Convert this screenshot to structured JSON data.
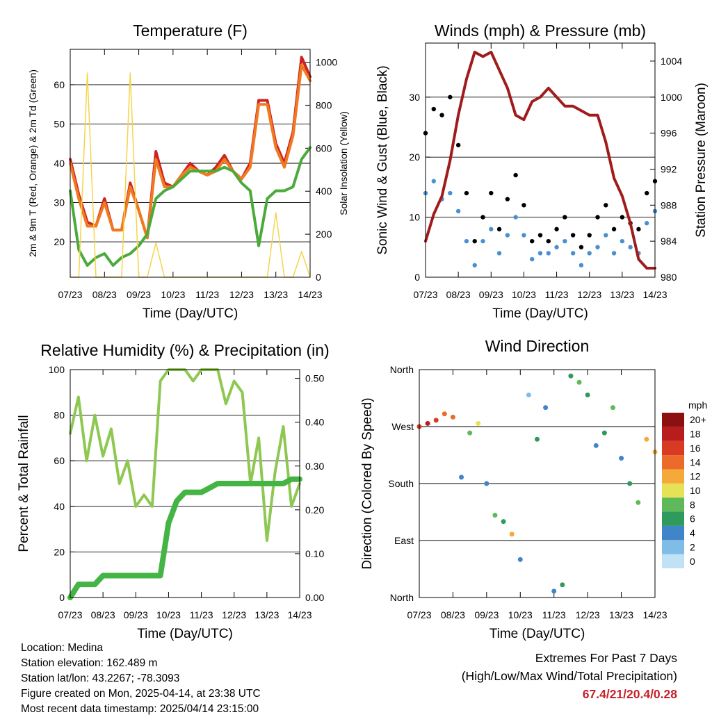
{
  "x_ticks": [
    "07/23",
    "08/23",
    "09/23",
    "10/23",
    "11/23",
    "12/23",
    "13/23",
    "14/23"
  ],
  "chart_data": [
    {
      "type": "line",
      "title": "Temperature (F)",
      "xlabel": "Time (Day/UTC)",
      "ylabel": "2m & 9m T (Red, Orange) & 2m Td (Green)",
      "y2label": "Solar Insolation (Yellow)",
      "ylim": [
        11,
        69
      ],
      "y2lim": [
        0,
        1060
      ],
      "yticks": [
        20,
        30,
        40,
        50,
        60
      ],
      "y2ticks": [
        0,
        200,
        400,
        600,
        800,
        1000
      ],
      "x": [
        0,
        0.25,
        0.5,
        0.75,
        1,
        1.25,
        1.5,
        1.75,
        2,
        2.25,
        2.5,
        2.75,
        3,
        3.25,
        3.5,
        3.75,
        4,
        4.25,
        4.5,
        4.75,
        5,
        5.25,
        5.5,
        5.75,
        6,
        6.25,
        6.5,
        6.75,
        7
      ],
      "series": [
        {
          "color": "#cc2222",
          "values": [
            41,
            32,
            25,
            24,
            31,
            23,
            23,
            35,
            28,
            21,
            43,
            35,
            34,
            37,
            40,
            38,
            37,
            39,
            42,
            38,
            36,
            40,
            56,
            56,
            45,
            40,
            48,
            67,
            62
          ]
        },
        {
          "color": "#f07a20",
          "values": [
            40,
            31,
            24,
            24,
            30,
            23,
            23,
            34,
            28,
            21,
            41,
            34,
            34,
            37,
            39,
            38,
            37,
            38,
            41,
            38,
            36,
            39,
            55,
            55,
            44,
            39,
            47,
            65,
            61
          ]
        },
        {
          "color": "#4aaa3a",
          "values": [
            33,
            18,
            14,
            16,
            17,
            14,
            16,
            17,
            19,
            22,
            31,
            33,
            34,
            36,
            38,
            38,
            38,
            38,
            39,
            38,
            35,
            33,
            19,
            31,
            33,
            33,
            34,
            41,
            44
          ]
        },
        {
          "color": "#f5d44a",
          "axis": "y2",
          "values": [
            0,
            0,
            950,
            0,
            0,
            0,
            0,
            950,
            0,
            0,
            160,
            0,
            0,
            0,
            0,
            0,
            0,
            0,
            0,
            0,
            0,
            0,
            0,
            0,
            300,
            0,
            0,
            120,
            0
          ]
        }
      ]
    },
    {
      "type": "scatter",
      "title": "Winds (mph) & Pressure (mb)",
      "xlabel": "Time (Day/UTC)",
      "ylabel": "Sonic Wind & Gust (Blue, Black)",
      "y2label": "Station Pressure (Maroon)",
      "ylim": [
        0,
        39
      ],
      "y2lim": [
        980,
        1006
      ],
      "yticks": [
        0,
        10,
        20,
        30
      ],
      "y2ticks": [
        980,
        984,
        988,
        992,
        996,
        1000,
        1004
      ],
      "x": [
        0,
        0.25,
        0.5,
        0.75,
        1,
        1.25,
        1.5,
        1.75,
        2,
        2.25,
        2.5,
        2.75,
        3,
        3.25,
        3.5,
        3.75,
        4,
        4.25,
        4.5,
        4.75,
        5,
        5.25,
        5.5,
        5.75,
        6,
        6.25,
        6.5,
        6.75,
        7
      ],
      "series": [
        {
          "color": "#000000",
          "values": [
            24,
            28,
            27,
            30,
            22,
            14,
            6,
            10,
            14,
            8,
            13,
            17,
            12,
            6,
            7,
            6,
            8,
            10,
            7,
            5,
            7,
            10,
            12,
            8,
            10,
            9,
            8,
            14,
            16
          ]
        },
        {
          "color": "#4a8fd0",
          "values": [
            14,
            16,
            13,
            14,
            11,
            6,
            2,
            6,
            8,
            4,
            7,
            10,
            7,
            3,
            4,
            4,
            5,
            6,
            4,
            2,
            4,
            5,
            7,
            4,
            6,
            5,
            4,
            9,
            11
          ]
        },
        {
          "color": "#a01c1c",
          "axis": "y2",
          "values": [
            984,
            987,
            989,
            993,
            998,
            1002,
            1005,
            1004.5,
            1005,
            1003,
            1001,
            998,
            997.5,
            999.5,
            1000,
            1001,
            1000,
            999,
            999,
            998.5,
            998,
            998,
            995,
            991,
            989,
            986,
            982,
            981,
            981
          ]
        }
      ]
    },
    {
      "type": "line",
      "title": "Relative Humidity (%) & Precipitation (in)",
      "xlabel": "Time (Day/UTC)",
      "ylabel": "Percent & Total Rainfall",
      "ylim": [
        0,
        100
      ],
      "y2lim": [
        0,
        0.52
      ],
      "yticks": [
        0,
        20,
        40,
        60,
        80,
        100
      ],
      "y2ticks": [
        "0.00",
        "0.10",
        "0.20",
        "0.30",
        "0.40",
        "0.50"
      ],
      "x": [
        0,
        0.25,
        0.5,
        0.75,
        1,
        1.25,
        1.5,
        1.75,
        2,
        2.25,
        2.5,
        2.75,
        3,
        3.25,
        3.5,
        3.75,
        4,
        4.25,
        4.5,
        4.75,
        5,
        5.25,
        5.5,
        5.75,
        6,
        6.25,
        6.5,
        6.75,
        7
      ],
      "series": [
        {
          "color": "#8ec852",
          "values": [
            72,
            88,
            60,
            80,
            62,
            74,
            50,
            60,
            40,
            45,
            40,
            95,
            100,
            100,
            100,
            95,
            100,
            100,
            100,
            85,
            95,
            90,
            50,
            70,
            25,
            55,
            75,
            40,
            50
          ]
        },
        {
          "color": "#44b544",
          "axis": "y2",
          "values": [
            0,
            0.03,
            0.03,
            0.03,
            0.05,
            0.05,
            0.05,
            0.05,
            0.05,
            0.05,
            0.05,
            0.05,
            0.17,
            0.22,
            0.24,
            0.24,
            0.24,
            0.25,
            0.26,
            0.26,
            0.26,
            0.26,
            0.26,
            0.26,
            0.26,
            0.26,
            0.26,
            0.27,
            0.27
          ]
        }
      ]
    },
    {
      "type": "scatter",
      "title": "Wind Direction",
      "xlabel": "Time (Day/UTC)",
      "ylabel": "Direction (Colored By Speed)",
      "ylim": [
        0,
        360
      ],
      "yticks": [
        "North",
        "East",
        "South",
        "West",
        "North"
      ],
      "legend_title": "mph",
      "legend_labels": [
        "0",
        "2",
        "4",
        "6",
        "8",
        "10",
        "12",
        "14",
        "16",
        "18",
        "20+"
      ],
      "legend_colors": [
        "#bfe3f5",
        "#7fbce6",
        "#3f85c8",
        "#2f9a5e",
        "#5fb85a",
        "#e5e255",
        "#f5a93a",
        "#ec6a2a",
        "#d83a24",
        "#b81c1c",
        "#8c1010"
      ],
      "x": [
        0,
        0.25,
        0.5,
        0.75,
        1,
        1.25,
        1.5,
        1.75,
        2,
        2.25,
        2.5,
        2.75,
        3,
        3.25,
        3.5,
        3.75,
        4,
        4.25,
        4.5,
        4.75,
        5,
        5.25,
        5.5,
        5.75,
        6,
        6.25,
        6.5,
        6.75,
        7
      ],
      "direction_values": [
        270,
        275,
        280,
        290,
        285,
        190,
        260,
        275,
        180,
        130,
        120,
        100,
        60,
        320,
        250,
        300,
        10,
        20,
        350,
        340,
        320,
        240,
        260,
        300,
        220,
        180,
        150,
        250,
        230
      ],
      "speed_values": [
        16,
        18,
        16,
        14,
        14,
        4,
        8,
        10,
        4,
        8,
        6,
        12,
        4,
        2,
        6,
        4,
        4,
        6,
        6,
        8,
        6,
        4,
        6,
        8,
        4,
        6,
        8,
        12,
        12
      ]
    }
  ],
  "footer": {
    "location": "Location: Medina",
    "elevation": "Station elevation: 162.489 m",
    "latlon": "Station lat/lon: 43.2267; -78.3093",
    "created": "Figure created on Mon, 2025-04-14, at 23:38 UTC",
    "recent": "Most recent data timestamp: 2025/04/14 23:15:00",
    "extremes_title": "Extremes For Past 7 Days",
    "extremes_sub": "(High/Low/Max Wind/Total Precipitation)",
    "extremes_values": "67.4/21/20.4/0.28"
  }
}
